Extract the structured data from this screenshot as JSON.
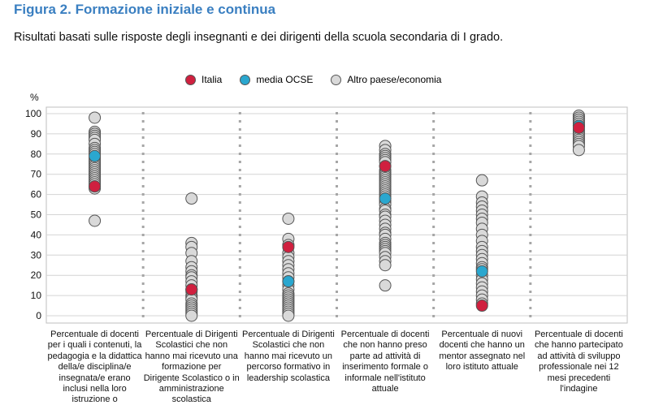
{
  "header": {
    "title": "Figura 2. Formazione iniziale e continua",
    "subtitle": "Risultati basati sulle risposte degli insegnanti e dei dirigenti della scuola secondaria di I grado."
  },
  "legend": [
    {
      "label": "Italia",
      "color": "#d0203f"
    },
    {
      "label": "media OCSE",
      "color": "#2aa7cf"
    },
    {
      "label": "Altro paese/economia",
      "color": "#d9d9d9"
    }
  ],
  "chart_data": {
    "type": "scatter",
    "title": "Figura 2. Formazione iniziale e continua",
    "subtitle": "Risultati basati sulle risposte degli insegnanti e dei dirigenti della scuola secondaria di I grado.",
    "ylabel": "%",
    "ylim": [
      0,
      100
    ],
    "yticks": [
      0,
      10,
      20,
      30,
      40,
      50,
      60,
      70,
      80,
      90,
      100
    ],
    "grid": true,
    "legend_position": "top",
    "categories": [
      "Percentuale di docenti per i quali i contenuti, la pedagogia e la didattica della/e disciplina/e insegnata/e erano inclusi nella loro istruzione o",
      "Percentuale di Dirigenti Scolastici che non hanno mai ricevuto una formazione per Dirigente Scolastico o in amministrazione scolastica",
      "Percentuale di Dirigenti Scolastici che non hanno mai ricevuto un percorso formativo in leadership scolastica",
      "Percentuale di docenti che non hanno preso parte ad attività di inserimento formale o informale nell'istituto attuale",
      "Percentuale di nuovi docenti che hanno un mentor assegnato nel loro istituto attuale",
      "Percentuale di docenti che hanno partecipato ad attività di sviluppo professionale nei 12 mesi precedenti l'indagine"
    ],
    "series": [
      {
        "name": "Altro paese/economia",
        "color": "#d9d9d9",
        "values": [
          [
            98,
            91,
            90,
            89,
            88,
            87,
            85,
            83,
            82,
            81,
            80,
            78,
            77,
            76,
            75,
            74,
            73,
            72,
            71,
            70,
            69,
            68,
            67,
            66,
            65,
            64,
            63,
            47
          ],
          [
            58,
            36,
            34,
            31,
            27,
            24,
            22,
            20,
            19,
            17,
            15,
            13,
            12,
            10,
            9,
            8,
            6,
            5,
            4,
            3,
            2,
            1,
            0
          ],
          [
            48,
            38,
            35,
            31,
            29,
            27,
            25,
            23,
            21,
            19,
            17,
            15,
            13,
            11,
            10,
            9,
            8,
            7,
            6,
            5,
            4,
            3,
            2,
            1,
            0
          ],
          [
            84,
            82,
            80,
            79,
            78,
            77,
            76,
            74,
            72,
            71,
            70,
            69,
            68,
            67,
            66,
            65,
            64,
            63,
            62,
            61,
            60,
            59,
            58,
            57,
            56,
            55,
            53,
            52,
            50,
            49,
            47,
            45,
            43,
            41,
            40,
            38,
            36,
            35,
            34,
            33,
            32,
            31,
            29,
            27,
            25,
            15
          ],
          [
            67,
            59,
            56,
            54,
            52,
            50,
            48,
            46,
            43,
            40,
            37,
            34,
            32,
            30,
            28,
            26,
            24,
            23,
            20,
            18,
            16,
            14,
            12,
            10,
            8,
            6
          ],
          [
            99,
            98,
            97,
            96,
            95,
            94,
            92,
            91,
            90,
            89,
            88,
            87,
            86,
            85,
            84,
            82
          ]
        ]
      },
      {
        "name": "media OCSE",
        "color": "#2aa7cf",
        "values": [
          79,
          13,
          17,
          58,
          22,
          94
        ]
      },
      {
        "name": "Italia",
        "color": "#d0203f",
        "values": [
          64,
          13,
          34,
          74,
          5,
          93
        ]
      }
    ]
  }
}
